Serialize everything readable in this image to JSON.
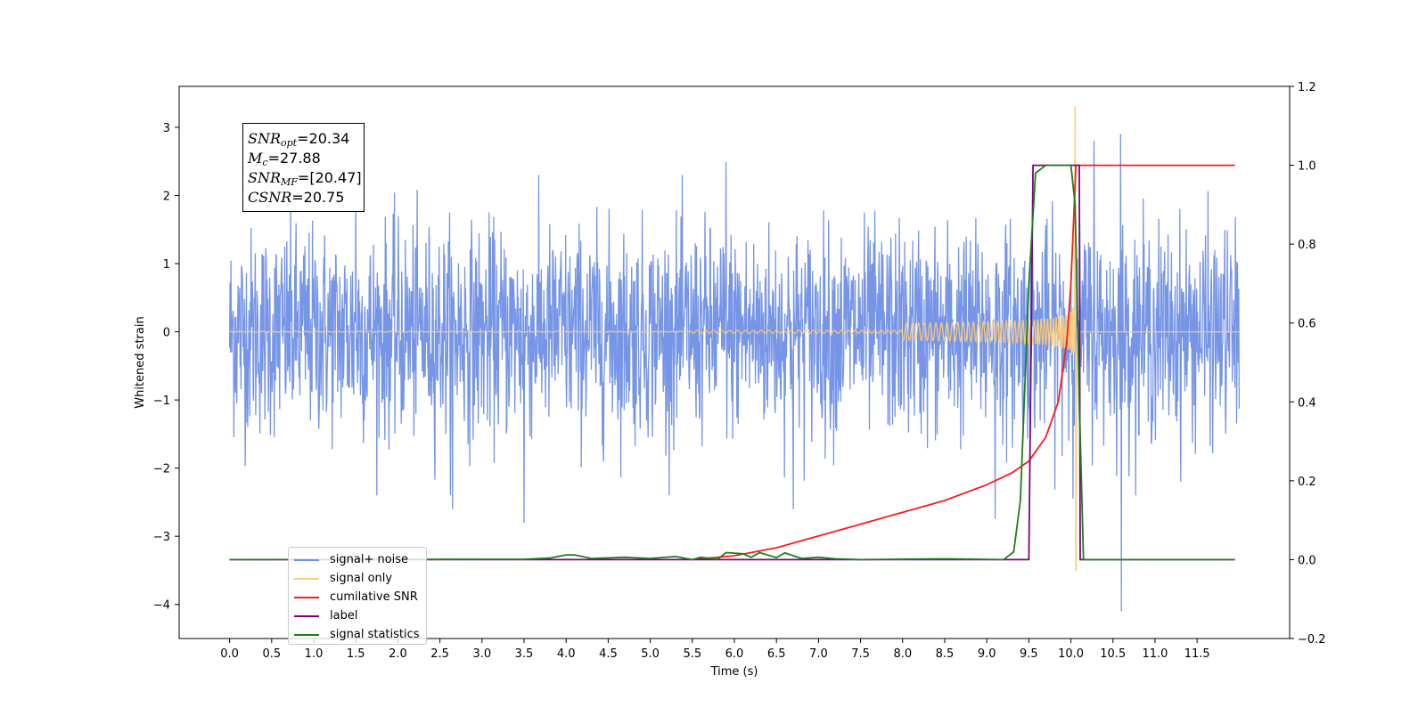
{
  "chart_data": {
    "type": "line",
    "xlabel": "Time (s)",
    "ylabel": "Whitened strain",
    "xlim": [
      -0.6,
      12.6
    ],
    "ylim": [
      -4.5,
      3.6
    ],
    "y2lim": [
      -0.2,
      1.2
    ],
    "x_ticks": [
      "0.0",
      "0.5",
      "1.0",
      "1.5",
      "2.0",
      "2.5",
      "3.0",
      "3.5",
      "4.0",
      "4.5",
      "5.0",
      "5.5",
      "6.0",
      "6.5",
      "7.0",
      "7.5",
      "8.0",
      "8.5",
      "9.0",
      "9.5",
      "10.0",
      "10.5",
      "11.0",
      "11.5"
    ],
    "y_ticks": [
      "3",
      "2",
      "1",
      "0",
      "−1",
      "−2",
      "−3",
      "−4"
    ],
    "y2_ticks": [
      "1.2",
      "1.0",
      "0.8",
      "0.6",
      "0.4",
      "0.2",
      "0.0",
      "−0.2"
    ],
    "series": [
      {
        "name": "signal+ noise",
        "color": "#6f8fe6",
        "axis": "left",
        "description_values": {
          "t_start": 0.0,
          "t_end": 12.0,
          "noise_amplitude": 1.3,
          "max": 2.9,
          "min": -4.1
        }
      },
      {
        "name": "signal only",
        "color": "#ffcc77",
        "axis": "left",
        "description_values": {
          "t_start": 0.0,
          "t_merger": 10.05,
          "peak": 3.3,
          "trough": -3.5
        }
      },
      {
        "name": "cumilative SNR",
        "color": "#ff1a1a",
        "axis": "right",
        "points": [
          [
            5.5,
            0.0
          ],
          [
            6.0,
            0.01
          ],
          [
            6.5,
            0.03
          ],
          [
            7.0,
            0.06
          ],
          [
            7.5,
            0.09
          ],
          [
            8.0,
            0.12
          ],
          [
            8.5,
            0.15
          ],
          [
            9.0,
            0.19
          ],
          [
            9.3,
            0.22
          ],
          [
            9.5,
            0.25
          ],
          [
            9.7,
            0.31
          ],
          [
            9.85,
            0.4
          ],
          [
            9.95,
            0.55
          ],
          [
            10.0,
            0.7
          ],
          [
            10.03,
            0.85
          ],
          [
            10.06,
            1.0
          ],
          [
            11.95,
            1.0
          ]
        ]
      },
      {
        "name": "label",
        "color": "#800080",
        "axis": "right",
        "points": [
          [
            0.0,
            0.0
          ],
          [
            9.5,
            0.0
          ],
          [
            9.55,
            1.0
          ],
          [
            10.1,
            1.0
          ],
          [
            10.11,
            0.0
          ],
          [
            11.95,
            0.0
          ]
        ]
      },
      {
        "name": "signal statistics",
        "color": "#1a801a",
        "axis": "right",
        "points": [
          [
            0.0,
            0.0
          ],
          [
            3.0,
            0.001
          ],
          [
            3.5,
            0.001
          ],
          [
            3.8,
            0.004
          ],
          [
            4.0,
            0.012
          ],
          [
            4.1,
            0.012
          ],
          [
            4.3,
            0.003
          ],
          [
            4.7,
            0.006
          ],
          [
            5.0,
            0.003
          ],
          [
            5.3,
            0.008
          ],
          [
            5.5,
            0.0
          ],
          [
            5.6,
            0.006
          ],
          [
            5.8,
            0.001
          ],
          [
            5.9,
            0.018
          ],
          [
            6.1,
            0.015
          ],
          [
            6.2,
            0.006
          ],
          [
            6.3,
            0.018
          ],
          [
            6.5,
            0.005
          ],
          [
            6.6,
            0.017
          ],
          [
            6.8,
            0.003
          ],
          [
            7.0,
            0.006
          ],
          [
            7.2,
            0.002
          ],
          [
            7.5,
            0.0
          ],
          [
            8.5,
            0.002
          ],
          [
            9.2,
            0.0
          ],
          [
            9.32,
            0.02
          ],
          [
            9.4,
            0.15
          ],
          [
            9.5,
            0.7
          ],
          [
            9.58,
            0.98
          ],
          [
            9.7,
            1.0
          ],
          [
            10.0,
            1.0
          ],
          [
            10.05,
            0.9
          ],
          [
            10.1,
            0.4
          ],
          [
            10.15,
            0.0
          ],
          [
            11.95,
            0.0
          ]
        ]
      }
    ],
    "annotation_box": {
      "snr_opt": "=20.34",
      "mc": "=27.88",
      "snr_mf": "=[20.47]",
      "csnr": "=20.75"
    },
    "legend_position": "lower-left",
    "grid": false
  }
}
